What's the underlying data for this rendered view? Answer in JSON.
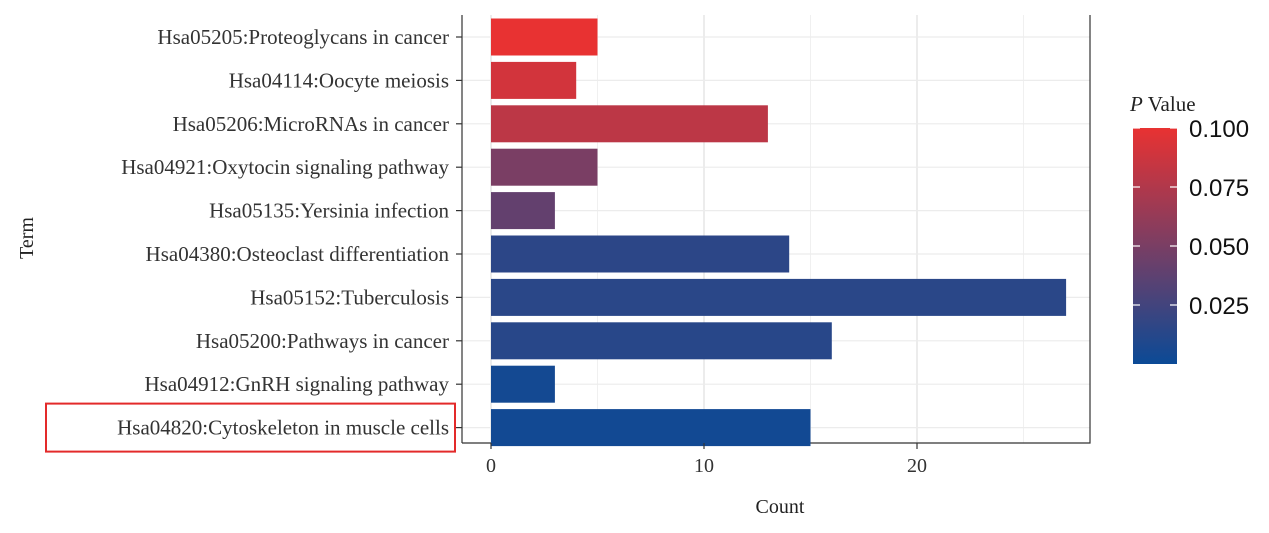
{
  "chart_data": {
    "type": "bar",
    "orientation": "horizontal",
    "xlabel": "Count",
    "ylabel": "Term",
    "categories": [
      "Hsa05205:Proteoglycans in cancer",
      "Hsa04114:Oocyte meiosis",
      "Hsa05206:MicroRNAs in cancer",
      "Hsa04921:Oxytocin signaling pathway",
      "Hsa05135:Yersinia infection",
      "Hsa04380:Osteoclast differentiation",
      "Hsa05152:Tuberculosis",
      "Hsa05200:Pathways in cancer",
      "Hsa04912:GnRH signaling pathway",
      "Hsa04820:Cytoskeleton in muscle cells"
    ],
    "values": [
      5,
      4,
      13,
      5,
      3,
      14,
      27,
      16,
      3,
      15
    ],
    "p_values": [
      0.1,
      0.09,
      0.08,
      0.05,
      0.04,
      0.015,
      0.014,
      0.013,
      0.004,
      0.003
    ],
    "xlim": [
      0,
      28
    ],
    "xticks": [
      "0",
      "10",
      "20"
    ],
    "xtick_values": [
      0,
      10,
      20
    ],
    "grid": true,
    "highlighted_category": "Hsa04820:Cytoskeleton in muscle cells",
    "highlight_color": "#e32a2a",
    "legend": {
      "title_italic": "P",
      "title_rest": " Value",
      "labels": [
        "0.100",
        "0.075",
        "0.050",
        "0.025"
      ],
      "label_values": [
        0.1,
        0.075,
        0.05,
        0.025
      ],
      "range": [
        0,
        0.1
      ],
      "color_low": "#0b4a96",
      "color_high": "#e83232",
      "placement": "right"
    }
  }
}
